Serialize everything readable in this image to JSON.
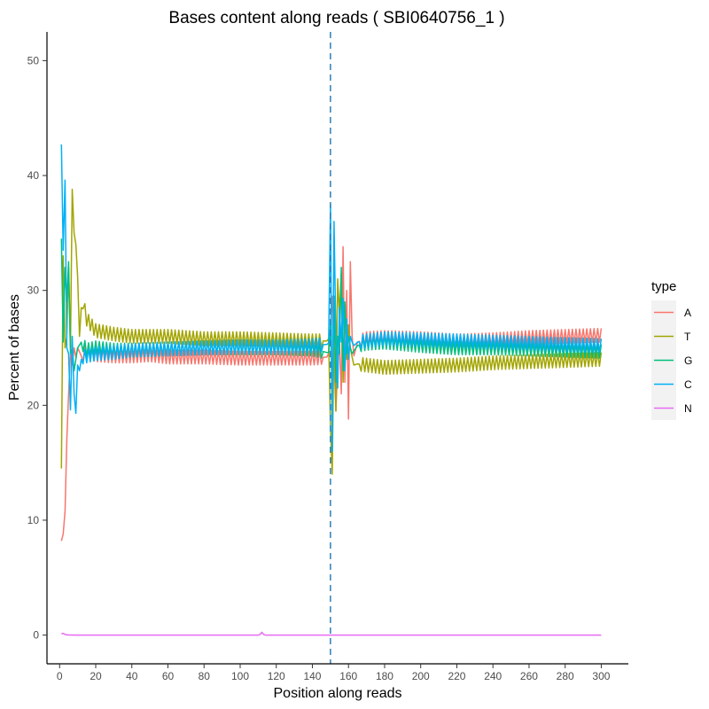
{
  "chart_data": {
    "type": "line",
    "title": "Bases content along reads ( SBI0640756_1 )",
    "xlabel": "Position along reads",
    "ylabel": "Percent of bases",
    "xlim": [
      -7,
      315
    ],
    "ylim": [
      -2.5,
      52.5
    ],
    "xticks": [
      0,
      20,
      40,
      60,
      80,
      100,
      120,
      140,
      160,
      180,
      200,
      220,
      240,
      260,
      280,
      300
    ],
    "yticks": [
      0,
      10,
      20,
      30,
      40,
      50
    ],
    "grid": false,
    "legend": {
      "title": "type",
      "position": "right"
    },
    "vline": {
      "x": 150,
      "style": "dashed",
      "color": "#2c7fb8"
    },
    "series": [
      {
        "name": "A",
        "color": "#F8766D",
        "x": [
          1,
          2,
          3,
          4,
          5,
          6,
          7,
          8,
          9,
          10,
          12,
          15,
          20,
          30,
          40,
          50,
          60,
          80,
          100,
          120,
          140,
          148,
          149,
          150,
          151,
          152,
          153,
          154,
          155,
          156,
          157,
          158,
          159,
          160,
          161,
          162,
          163,
          165,
          170,
          180,
          200,
          220,
          240,
          260,
          280,
          300
        ],
        "y": [
          8.2,
          8.8,
          10.8,
          17,
          21,
          24.5,
          23.5,
          25,
          24.2,
          25,
          24.3,
          24.6,
          24.4,
          24.3,
          24.3,
          24.4,
          24.2,
          24.2,
          24.1,
          24.1,
          24.1,
          24.2,
          24.5,
          27,
          29.5,
          24,
          19.5,
          23.5,
          25.5,
          21,
          33.8,
          22,
          30,
          18.8,
          32.5,
          26,
          24.3,
          25.5,
          25.8,
          25.9,
          25.8,
          25.6,
          25.7,
          25.9,
          26.0,
          26.1
        ],
        "osc": 0.6
      },
      {
        "name": "T",
        "color": "#A3A500",
        "x": [
          1,
          2,
          3,
          4,
          5,
          6,
          7,
          8,
          9,
          10,
          11,
          12,
          13,
          15,
          20,
          30,
          40,
          60,
          80,
          100,
          120,
          140,
          148,
          149,
          150,
          151,
          152,
          153,
          154,
          155,
          156,
          157,
          158,
          159,
          160,
          161,
          162,
          163,
          165,
          170,
          180,
          200,
          220,
          240,
          260,
          280,
          300
        ],
        "y": [
          14.5,
          33,
          25,
          26,
          32,
          25,
          38.8,
          35,
          34,
          31.2,
          26,
          28.5,
          29,
          27.5,
          26.5,
          26.2,
          26,
          26,
          25.8,
          25.8,
          25.7,
          25.6,
          25.6,
          25.8,
          18,
          14,
          27,
          19.5,
          31,
          28,
          31.5,
          22,
          28,
          24,
          27,
          25,
          24.2,
          23.5,
          23.6,
          23.5,
          23.3,
          23.4,
          23.5,
          23.7,
          23.8,
          23.9,
          24.0
        ],
        "osc": 0.6
      },
      {
        "name": "G",
        "color": "#00BF7D",
        "x": [
          1,
          2,
          3,
          4,
          5,
          6,
          7,
          8,
          9,
          10,
          12,
          15,
          20,
          30,
          40,
          60,
          80,
          100,
          120,
          140,
          148,
          149,
          150,
          151,
          152,
          153,
          154,
          155,
          156,
          157,
          158,
          159,
          160,
          161,
          162,
          165,
          170,
          180,
          200,
          220,
          240,
          260,
          280,
          300
        ],
        "y": [
          34.5,
          25.5,
          32,
          29,
          32.5,
          24.5,
          25,
          23,
          24,
          25,
          25.5,
          24.8,
          25,
          24.8,
          24.8,
          24.9,
          25,
          25,
          25,
          24.9,
          24.6,
          24.6,
          27,
          20.5,
          29.5,
          22,
          26,
          24.5,
          32,
          23,
          29,
          24.5,
          26,
          25,
          24.5,
          25.2,
          25.4,
          25.5,
          25.2,
          25.0,
          25.0,
          24.9,
          24.8,
          24.7
        ],
        "osc": 0.6
      },
      {
        "name": "C",
        "color": "#00B0F6",
        "x": [
          1,
          2,
          3,
          4,
          5,
          6,
          7,
          8,
          9,
          10,
          11,
          12,
          13,
          15,
          20,
          30,
          40,
          60,
          80,
          100,
          120,
          140,
          148,
          149,
          150,
          151,
          152,
          153,
          154,
          155,
          156,
          157,
          158,
          159,
          160,
          161,
          162,
          163,
          165,
          170,
          180,
          200,
          220,
          240,
          260,
          280,
          300
        ],
        "y": [
          42.7,
          33.5,
          39.6,
          25,
          24.5,
          19.6,
          26,
          21,
          19.3,
          23.5,
          23,
          24,
          24.2,
          24.3,
          24.5,
          24.6,
          24.8,
          24.9,
          25,
          25.1,
          25.1,
          25.2,
          25.3,
          25.4,
          37.5,
          16,
          36,
          26,
          21.5,
          28.5,
          25.5,
          29.3,
          23,
          27.5,
          24,
          26,
          25.5,
          25.2,
          25.5,
          25.6,
          25.8,
          25.7,
          25.6,
          25.5,
          25.4,
          25.3,
          25.2
        ],
        "osc": 0.6
      },
      {
        "name": "N",
        "color": "#E76BF3",
        "x": [
          1,
          2,
          3,
          4,
          5,
          6,
          8,
          10,
          20,
          40,
          60,
          80,
          100,
          110,
          111,
          112,
          113,
          114,
          120,
          150,
          200,
          250,
          300
        ],
        "y": [
          0.1,
          0.15,
          0.05,
          0.02,
          0.01,
          0.01,
          0,
          0,
          0,
          0,
          0,
          0,
          0,
          0,
          0.05,
          0.25,
          0.05,
          0,
          0,
          0,
          0,
          0,
          0
        ],
        "osc": 0
      }
    ]
  }
}
